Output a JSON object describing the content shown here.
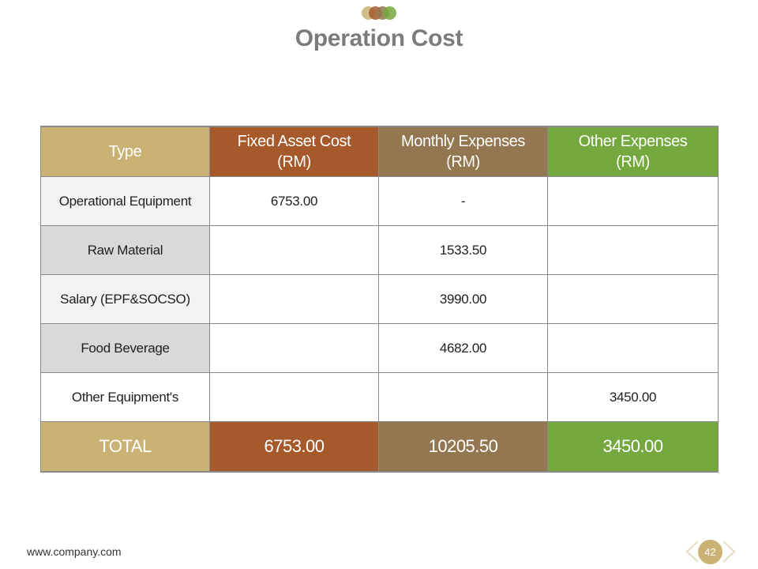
{
  "slide": {
    "title": "Operation Cost",
    "footer_url": "www.company.com",
    "page_number": "42"
  },
  "colors": {
    "logo_dots": [
      "#c9b273",
      "#a65a2b",
      "#937750",
      "#75a83e"
    ],
    "title": "#7b7b7b",
    "type_column": "#c9b273",
    "fixed_asset_column": "#a65a2b",
    "monthly_column": "#937750",
    "other_column": "#75a83e"
  },
  "table": {
    "headers": {
      "type": "Type",
      "fixed_line1": "Fixed Asset Cost",
      "fixed_line2": "(RM)",
      "monthly_line1": "Monthly Expenses",
      "monthly_line2": "(RM)",
      "other_line1": "Other Expenses",
      "other_line2": "(RM)"
    },
    "rows": [
      {
        "type": "Operational Equipment",
        "fixed": "6753.00",
        "monthly": "-",
        "other": ""
      },
      {
        "type": "Raw Material",
        "fixed": "",
        "monthly": "1533.50",
        "other": ""
      },
      {
        "type": "Salary (EPF&SOCSO)",
        "fixed": "",
        "monthly": "3990.00",
        "other": ""
      },
      {
        "type": "Food Beverage",
        "fixed": "",
        "monthly": "4682.00",
        "other": ""
      },
      {
        "type": "Other Equipment's",
        "fixed": "",
        "monthly": "",
        "other": "3450.00"
      }
    ],
    "total": {
      "label": "TOTAL",
      "fixed": "6753.00",
      "monthly": "10205.50",
      "other": "3450.00"
    }
  }
}
